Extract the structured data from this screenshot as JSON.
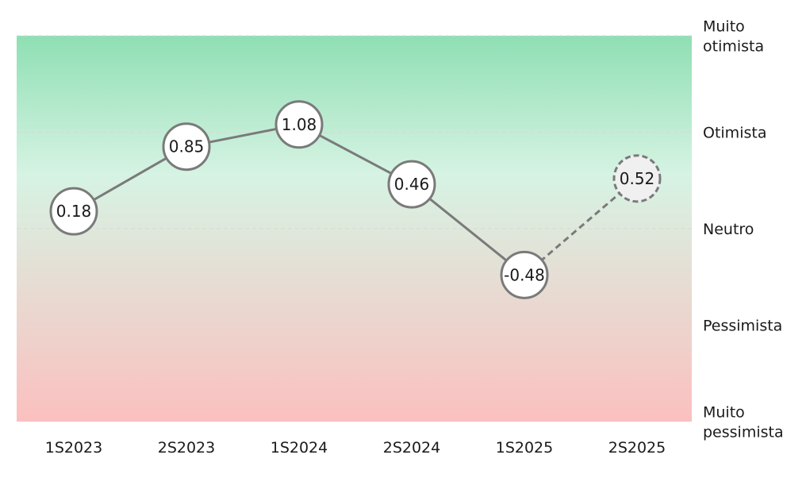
{
  "chart_data": {
    "type": "line",
    "categories": [
      "1S2023",
      "2S2023",
      "1S2024",
      "2S2024",
      "1S2025",
      "2S2025"
    ],
    "values": [
      0.18,
      0.85,
      1.08,
      0.46,
      -0.48,
      0.52
    ],
    "value_labels": [
      "0.18",
      "0.85",
      "1.08",
      "0.46",
      "-0.48",
      "0.52"
    ],
    "projected_from_index": 4,
    "ylim": [
      -2,
      2
    ],
    "right_axis_labels": [
      {
        "lines": [
          "Muito",
          "otimista"
        ],
        "value": 2
      },
      {
        "lines": [
          "Otimista"
        ],
        "value": 1
      },
      {
        "lines": [
          "Neutro"
        ],
        "value": 0
      },
      {
        "lines": [
          "Pessimista"
        ],
        "value": -1
      },
      {
        "lines": [
          "Muito",
          "pessimista"
        ],
        "value": -2
      }
    ],
    "colors": {
      "top": "#8fdfb4",
      "middle": "#d6f3e3",
      "bottom": "#fbc0bf",
      "line": "#7a7a7a",
      "marker_fill": "#ffffff",
      "projected_marker_fill": "#f0f0f0",
      "gridline": "#d8d8d8"
    }
  }
}
